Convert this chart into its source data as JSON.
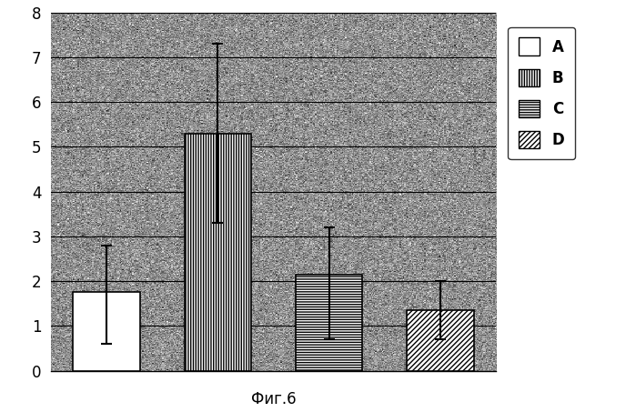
{
  "categories": [
    "A",
    "B",
    "C",
    "D"
  ],
  "values": [
    1.75,
    5.3,
    2.15,
    1.35
  ],
  "errors_lower": [
    1.15,
    2.0,
    1.45,
    0.65
  ],
  "errors_upper": [
    1.05,
    2.0,
    1.05,
    0.65
  ],
  "ylim": [
    0,
    8
  ],
  "yticks": [
    0,
    1,
    2,
    3,
    4,
    5,
    6,
    7,
    8
  ],
  "caption": "Фиг.6",
  "bg_color": "#d4d4d4",
  "plot_bg_color": "#c8c8c8",
  "bar_width": 0.6,
  "bar_edge_color": "#000000",
  "error_capsize": 4,
  "error_color": "#000000",
  "grid_color": "#000000",
  "font_size": 12,
  "legend_font_size": 12
}
